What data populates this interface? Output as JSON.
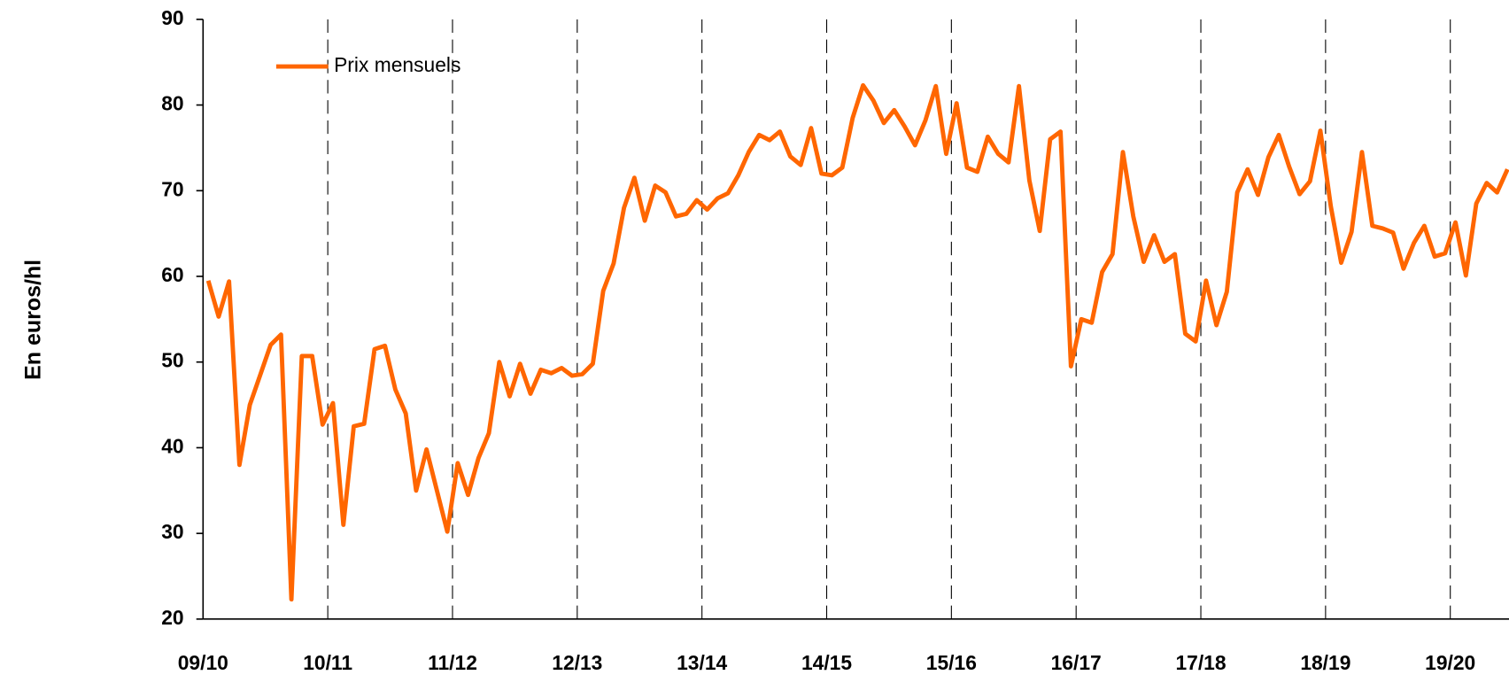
{
  "chart_data": {
    "type": "line",
    "y_label": "En euros/hl",
    "categories": [
      "09/10",
      null,
      null,
      null,
      null,
      null,
      null,
      null,
      null,
      null,
      null,
      null,
      "10/11",
      null,
      null,
      null,
      null,
      null,
      null,
      null,
      null,
      null,
      null,
      null,
      "11/12",
      null,
      null,
      null,
      null,
      null,
      null,
      null,
      null,
      null,
      null,
      null,
      "12/13",
      null,
      null,
      null,
      null,
      null,
      null,
      null,
      null,
      null,
      null,
      null,
      "13/14",
      null,
      null,
      null,
      null,
      null,
      null,
      null,
      null,
      null,
      null,
      null,
      "14/15",
      null,
      null,
      null,
      null,
      null,
      null,
      null,
      null,
      null,
      null,
      null,
      "15/16",
      null,
      null,
      null,
      null,
      null,
      null,
      null,
      null,
      null,
      null,
      null,
      "16/17",
      null,
      null,
      null,
      null,
      null,
      null,
      null,
      null,
      null,
      null,
      null,
      "17/18",
      null,
      null,
      null,
      null,
      null,
      null,
      null,
      null,
      null,
      null,
      null,
      "18/19",
      null,
      null,
      null,
      null,
      null,
      null,
      null,
      null,
      null,
      null,
      null,
      "19/20",
      null,
      null,
      null,
      null,
      null
    ],
    "series": [
      {
        "name": "Prix mensuels",
        "color": "#ff6600",
        "values": [
          59.5,
          55.3,
          59.4,
          38,
          45,
          48.5,
          52,
          53.2,
          22.3,
          50.7,
          50.7,
          42.7,
          45.2,
          31,
          42.5,
          42.8,
          51.5,
          51.9,
          46.8,
          44,
          35,
          39.8,
          35,
          30.2,
          38.2,
          34.5,
          38.8,
          41.7,
          50,
          46,
          49.8,
          46.3,
          49.1,
          48.7,
          49.3,
          48.4,
          48.6,
          49.8,
          58.3,
          61.5,
          68,
          71.5,
          66.5,
          70.6,
          69.8,
          67,
          67.3,
          68.9,
          67.8,
          69.1,
          69.7,
          71.8,
          74.5,
          76.5,
          75.9,
          76.9,
          74,
          73,
          77.3,
          72,
          71.8,
          72.7,
          78.5,
          82.3,
          80.5,
          77.9,
          79.4,
          77.5,
          75.3,
          78.2,
          82.2,
          74.3,
          80.2,
          72.7,
          72.2,
          76.3,
          74.3,
          73.3,
          82.2,
          71.2,
          65.3,
          76,
          76.9,
          49.5,
          55,
          54.6,
          60.5,
          62.6,
          74.5,
          67,
          61.7,
          64.8,
          61.7,
          62.6,
          53.3,
          52.4,
          59.5,
          54.3,
          58.2,
          69.8,
          72.5,
          69.5,
          73.9,
          76.5,
          72.8,
          69.6,
          71.1,
          77,
          68.2,
          61.6,
          65.2,
          74.5,
          65.9,
          65.6,
          65.1,
          60.9,
          63.9,
          65.9,
          62.3,
          62.7,
          66.3,
          60.1,
          68.5,
          70.9,
          69.8,
          72.5
        ]
      }
    ],
    "ylim": [
      20,
      90
    ],
    "yticks": [
      20,
      30,
      40,
      50,
      60,
      70,
      80,
      90
    ],
    "grid": "x-dashed",
    "legend": "upper left"
  }
}
